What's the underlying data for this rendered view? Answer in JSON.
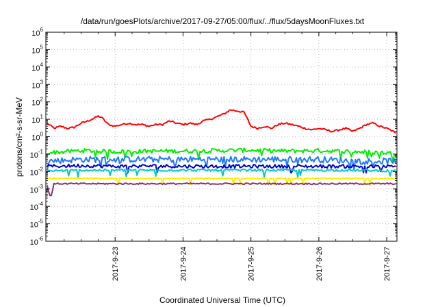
{
  "chart_data": {
    "type": "line",
    "title": "/data/run/goesPlots/archive/2017-09-27/05:00/flux/../flux/5daysMoonFluxes.txt",
    "xlabel": "Coordinated Universal Time (UTC)",
    "ylabel": "protons/cm²-s-sr-MeV",
    "y_scale": "log",
    "ylim_exponents": [
      -6,
      6
    ],
    "y_tick_base": "10",
    "y_tick_exponents": [
      "-6",
      "-5",
      "-4",
      "-3",
      "-2",
      "-1",
      "0",
      "1",
      "2",
      "3",
      "4",
      "5",
      "6"
    ],
    "x_tick_labels": [
      "2017-9-23",
      "2017-9-24",
      "2017-9-25",
      "2017-9-26",
      "2017-9-27"
    ],
    "x_range_days": [
      -1.02,
      4.15
    ],
    "grid": true,
    "series": [
      {
        "color": "#ff0000",
        "x": [
          -1.0,
          -0.9,
          -0.8,
          -0.7,
          -0.6,
          -0.5,
          -0.4,
          -0.3,
          -0.25,
          -0.2,
          -0.1,
          0.0,
          0.1,
          0.2,
          0.3,
          0.4,
          0.5,
          0.6,
          0.7,
          0.8,
          0.9,
          1.0,
          1.1,
          1.2,
          1.3,
          1.4,
          1.5,
          1.6,
          1.7,
          1.8,
          1.9,
          2.0,
          2.1,
          2.2,
          2.3,
          2.4,
          2.5,
          2.6,
          2.7,
          2.8,
          2.9,
          3.0,
          3.1,
          3.2,
          3.3,
          3.4,
          3.5,
          3.6,
          3.7,
          3.8,
          3.9,
          4.0,
          4.1,
          4.15
        ],
        "y": [
          6,
          3,
          4,
          3,
          3.5,
          6,
          8,
          12,
          15,
          13,
          5,
          4,
          5,
          6,
          5,
          5,
          4,
          5,
          5,
          8,
          6,
          5,
          6,
          5,
          8,
          10,
          14,
          20,
          35,
          30,
          25,
          4,
          3,
          4,
          3,
          5,
          6,
          5,
          4,
          3,
          2.5,
          3,
          2.5,
          2,
          2.5,
          3,
          2,
          3,
          5,
          6,
          4,
          3,
          2,
          1.2
        ]
      },
      {
        "color": "#00ee00",
        "x": [
          -1.0,
          -0.5,
          0.0,
          0.5,
          1.0,
          1.5,
          2.0,
          2.5,
          3.0,
          3.5,
          4.0,
          4.15
        ],
        "y": [
          0.12,
          0.16,
          0.14,
          0.15,
          0.15,
          0.16,
          0.17,
          0.15,
          0.16,
          0.14,
          0.12,
          0.1
        ]
      },
      {
        "color": "#1e78ff",
        "x": [
          -1.0,
          -0.5,
          0.0,
          0.5,
          1.0,
          1.5,
          2.0,
          2.5,
          3.0,
          3.5,
          4.0,
          4.15
        ],
        "y": [
          0.04,
          0.05,
          0.05,
          0.05,
          0.05,
          0.05,
          0.05,
          0.05,
          0.05,
          0.04,
          0.04,
          0.04
        ]
      },
      {
        "color": "#0000cc",
        "x": [
          -1.0,
          -0.5,
          0.0,
          0.5,
          1.0,
          1.5,
          2.0,
          2.5,
          3.0,
          3.5,
          4.0,
          4.15
        ],
        "y": [
          0.02,
          0.022,
          0.02,
          0.021,
          0.02,
          0.02,
          0.02,
          0.02,
          0.02,
          0.02,
          0.019,
          0.019
        ]
      },
      {
        "color": "#00c8c8",
        "x": [
          -1.0,
          -0.5,
          0.0,
          0.5,
          1.0,
          1.5,
          2.0,
          2.5,
          3.0,
          3.5,
          4.0,
          4.15
        ],
        "y": [
          0.011,
          0.012,
          0.012,
          0.012,
          0.012,
          0.012,
          0.012,
          0.012,
          0.012,
          0.012,
          0.011,
          0.011
        ]
      },
      {
        "color": "#ffee00",
        "x": [
          -1.0,
          -0.5,
          0.0,
          0.5,
          1.0,
          1.5,
          2.0,
          2.5,
          3.0,
          3.5,
          4.0,
          4.15
        ],
        "y": [
          0.004,
          0.004,
          0.004,
          0.004,
          0.004,
          0.004,
          0.004,
          0.004,
          0.004,
          0.004,
          0.004,
          0.004
        ]
      },
      {
        "color": "#8b2d6e",
        "x": [
          -1.0,
          -0.95,
          -0.9,
          -0.8,
          -0.5,
          0.0,
          0.5,
          1.0,
          1.5,
          2.0,
          2.5,
          3.0,
          3.5,
          4.0,
          4.15
        ],
        "y": [
          0.0015,
          0.0003,
          0.002,
          0.002,
          0.002,
          0.002,
          0.002,
          0.002,
          0.002,
          0.002,
          0.002,
          0.002,
          0.002,
          0.002,
          0.002
        ]
      }
    ]
  }
}
